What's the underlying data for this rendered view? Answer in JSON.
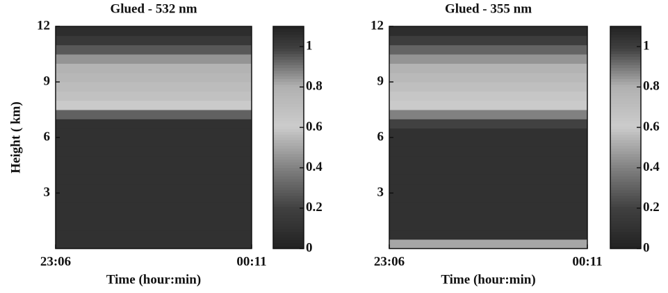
{
  "chart_data": [
    {
      "type": "heatmap",
      "title": "Glued  - 532 nm",
      "xlabel": "Time (hour:min)",
      "ylabel": "Height ( km)",
      "xlim": [
        0,
        65
      ],
      "xticks": [
        {
          "value": 0,
          "label": "23:06"
        },
        {
          "value": 65,
          "label": "00:11"
        }
      ],
      "ylim": [
        0,
        12
      ],
      "yticks": [
        3,
        6,
        9,
        12
      ],
      "clim": [
        0,
        1.1
      ],
      "cticks": [
        0,
        0.2,
        0.4,
        0.6,
        0.8,
        1
      ],
      "y": [
        0.25,
        0.75,
        1.25,
        1.75,
        2.25,
        2.75,
        3.25,
        3.75,
        4.25,
        4.75,
        5.25,
        5.75,
        6.25,
        6.75,
        7.25,
        7.75,
        8.25,
        8.75,
        9.25,
        9.75,
        10.25,
        10.75,
        11.25,
        11.75
      ],
      "values": [
        0.1,
        0.1,
        0.1,
        0.1,
        0.1,
        0.1,
        0.1,
        0.1,
        0.1,
        0.1,
        0.1,
        0.1,
        0.1,
        0.1,
        0.3,
        0.6,
        0.68,
        0.72,
        0.75,
        0.78,
        0.85,
        0.95,
        1.02,
        1.06
      ]
    },
    {
      "type": "heatmap",
      "title": "Glued - 355 nm",
      "xlabel": "Time (hour:min)",
      "xlim": [
        0,
        65
      ],
      "xticks": [
        {
          "value": 0,
          "label": "23:06"
        },
        {
          "value": 65,
          "label": "00:11"
        }
      ],
      "ylim": [
        0,
        12
      ],
      "yticks": [
        3,
        6,
        9,
        12
      ],
      "clim": [
        0,
        1.1
      ],
      "cticks": [
        0,
        0.2,
        0.4,
        0.6,
        0.8,
        1
      ],
      "y": [
        0.25,
        0.75,
        1.25,
        1.75,
        2.25,
        2.75,
        3.25,
        3.75,
        4.25,
        4.75,
        5.25,
        5.75,
        6.25,
        6.75,
        7.25,
        7.75,
        8.25,
        8.75,
        9.25,
        9.75,
        10.25,
        10.75,
        11.25,
        11.75
      ],
      "values": [
        0.5,
        0.1,
        0.1,
        0.1,
        0.1,
        0.1,
        0.1,
        0.1,
        0.1,
        0.1,
        0.1,
        0.1,
        0.1,
        0.2,
        0.4,
        0.6,
        0.65,
        0.7,
        0.74,
        0.78,
        0.85,
        0.93,
        1.0,
        1.06
      ]
    }
  ]
}
